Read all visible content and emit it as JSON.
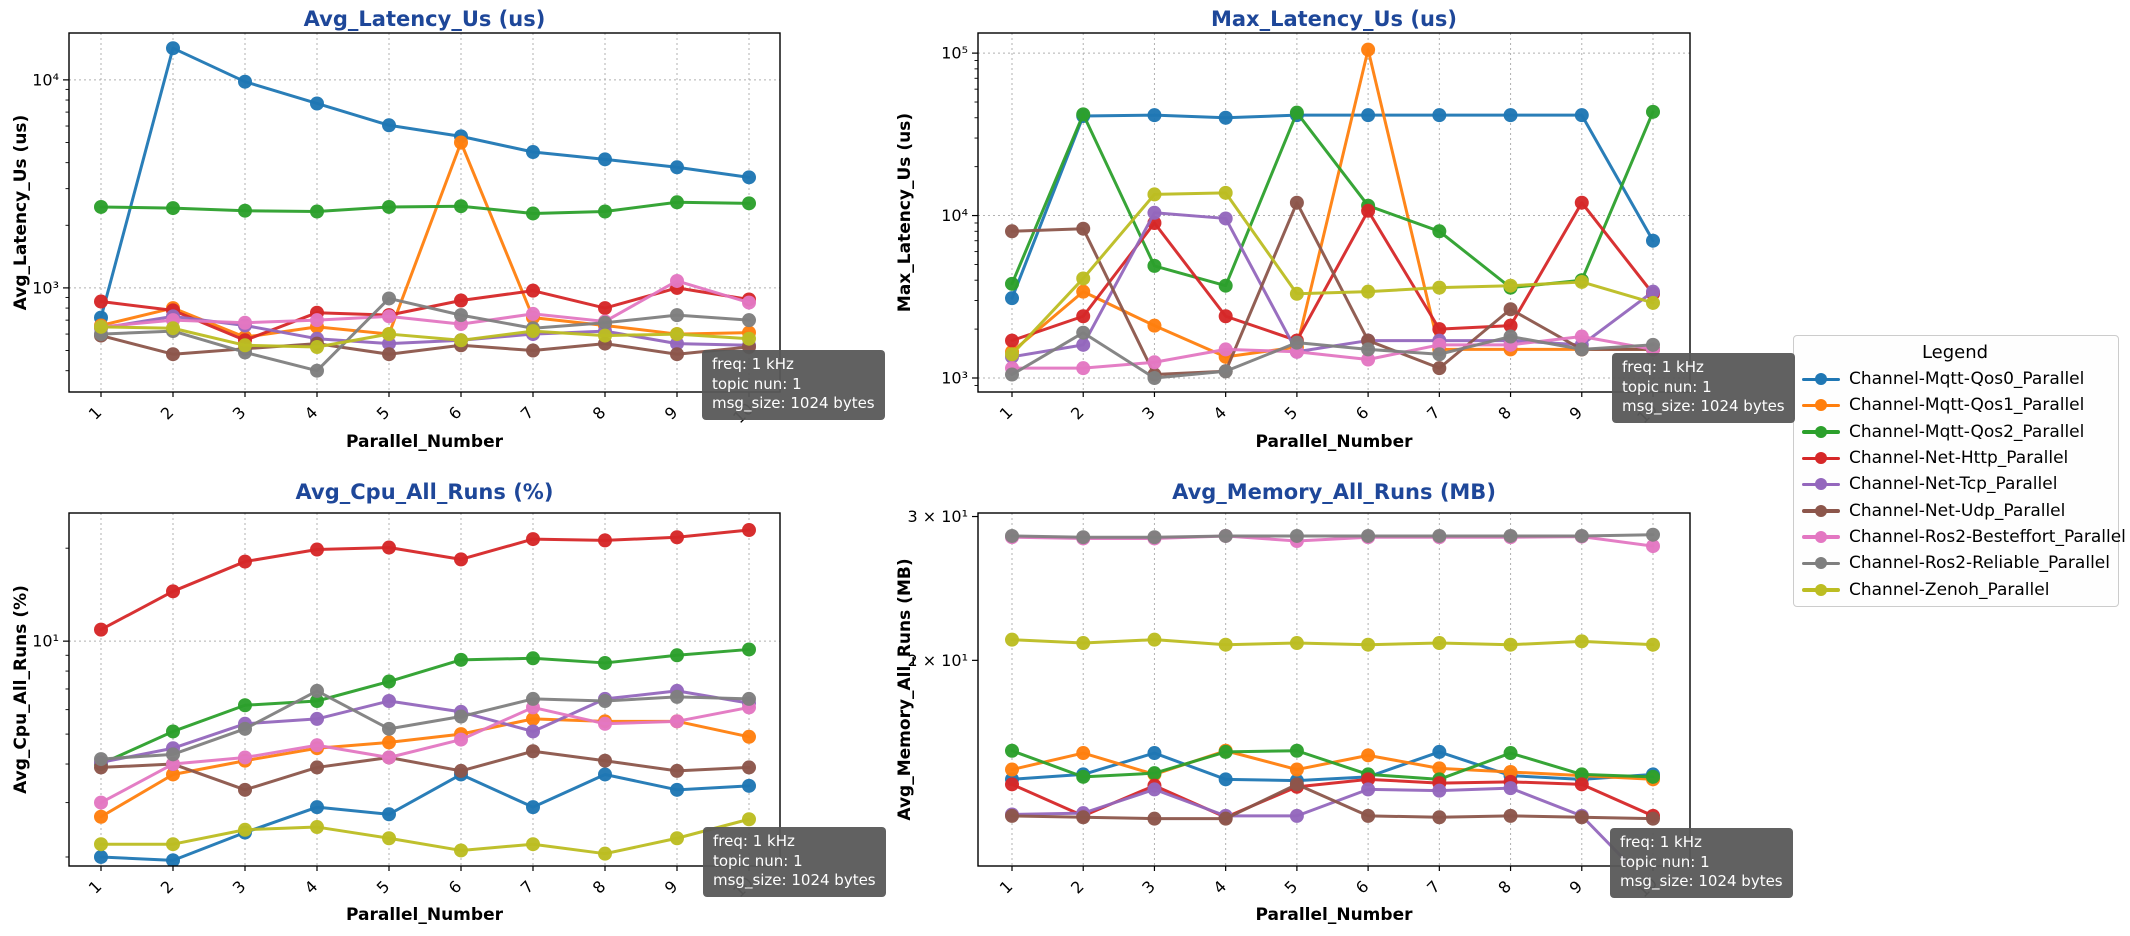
{
  "styles": {
    "background": "#ffffff",
    "title_color": "#1e4799",
    "axis_color": "#000000",
    "grid_color": "#b0b0b0",
    "annotation_bg": "#595959",
    "annotation_fg": "#ffffff",
    "legend_border": "#cccccc"
  },
  "annotation": {
    "lines": [
      "freq: 1 kHz",
      "topic nun: 1",
      "msg_size: 1024 bytes"
    ]
  },
  "legend": {
    "title": "Legend",
    "items": [
      {
        "label": "Channel-Mqtt-Qos0_Parallel",
        "color": "#1f77b4"
      },
      {
        "label": "Channel-Mqtt-Qos1_Parallel",
        "color": "#ff7f0e"
      },
      {
        "label": "Channel-Mqtt-Qos2_Parallel",
        "color": "#2ca02c"
      },
      {
        "label": "Channel-Net-Http_Parallel",
        "color": "#d62728"
      },
      {
        "label": "Channel-Net-Tcp_Parallel",
        "color": "#9467bd"
      },
      {
        "label": "Channel-Net-Udp_Parallel",
        "color": "#8c564b"
      },
      {
        "label": "Channel-Ros2-Besteffort_Parallel",
        "color": "#e377c2"
      },
      {
        "label": "Channel-Ros2-Reliable_Parallel",
        "color": "#7f7f7f"
      },
      {
        "label": "Channel-Zenoh_Parallel",
        "color": "#bcbd22"
      }
    ]
  },
  "chart_data": [
    {
      "type": "line",
      "title": "Avg_Latency_Us  (us)",
      "ylabel": "Avg_Latency_Us (us)",
      "xlabel": "Parallel_Number",
      "yscale": "log",
      "ylim": [
        316,
        16800
      ],
      "ygrid": true,
      "yticks": [
        {
          "value": 1000,
          "label": "10³"
        },
        {
          "value": 10000,
          "label": "10⁴"
        }
      ],
      "x": [
        1,
        2,
        3,
        4,
        5,
        6,
        7,
        8,
        9,
        10
      ],
      "series": [
        {
          "name": "Channel-Mqtt-Qos0_Parallel",
          "values": [
            720,
            14200,
            9800,
            7700,
            6050,
            5350,
            4500,
            4150,
            3800,
            3400
          ]
        },
        {
          "name": "Channel-Mqtt-Qos1_Parallel",
          "values": [
            660,
            800,
            580,
            650,
            600,
            5000,
            720,
            660,
            600,
            610
          ]
        },
        {
          "name": "Channel-Mqtt-Qos2_Parallel",
          "values": [
            2450,
            2420,
            2350,
            2330,
            2450,
            2470,
            2280,
            2330,
            2580,
            2550
          ]
        },
        {
          "name": "Channel-Net-Http_Parallel",
          "values": [
            860,
            780,
            560,
            760,
            740,
            870,
            970,
            800,
            1000,
            880
          ]
        },
        {
          "name": "Channel-Net-Tcp_Parallel",
          "values": [
            640,
            730,
            660,
            570,
            540,
            560,
            600,
            620,
            540,
            530
          ]
        },
        {
          "name": "Channel-Net-Udp_Parallel",
          "values": [
            590,
            480,
            510,
            540,
            480,
            530,
            500,
            540,
            480,
            520
          ]
        },
        {
          "name": "Channel-Ros2-Besteffort_Parallel",
          "values": [
            650,
            700,
            680,
            700,
            730,
            670,
            750,
            690,
            1080,
            850
          ]
        },
        {
          "name": "Channel-Ros2-Reliable_Parallel",
          "values": [
            600,
            620,
            490,
            400,
            890,
            740,
            640,
            680,
            740,
            700
          ]
        },
        {
          "name": "Channel-Zenoh_Parallel",
          "values": [
            650,
            640,
            530,
            520,
            600,
            560,
            620,
            590,
            600,
            570
          ]
        }
      ]
    },
    {
      "type": "line",
      "title": "Max_Latency_Us  (us)",
      "ylabel": "Max_Latency_Us (us)",
      "xlabel": "Parallel_Number",
      "yscale": "log",
      "ylim": [
        820,
        133000
      ],
      "ygrid": true,
      "yticks": [
        {
          "value": 1000,
          "label": "10³"
        },
        {
          "value": 10000,
          "label": "10⁴"
        },
        {
          "value": 100000,
          "label": "10⁵"
        }
      ],
      "x": [
        1,
        2,
        3,
        4,
        5,
        6,
        7,
        8,
        9,
        10
      ],
      "series": [
        {
          "name": "Channel-Mqtt-Qos0_Parallel",
          "values": [
            3100,
            41000,
            41500,
            40000,
            41500,
            41500,
            41500,
            41500,
            41500,
            7000
          ]
        },
        {
          "name": "Channel-Mqtt-Qos1_Parallel",
          "values": [
            1450,
            3400,
            2100,
            1350,
            1550,
            105000,
            1500,
            1500,
            1500,
            1500
          ]
        },
        {
          "name": "Channel-Mqtt-Qos2_Parallel",
          "values": [
            3800,
            42000,
            4900,
            3700,
            43000,
            11500,
            8000,
            3600,
            4000,
            43500
          ]
        },
        {
          "name": "Channel-Net-Http_Parallel",
          "values": [
            1700,
            2400,
            9000,
            2400,
            1700,
            10700,
            2000,
            2100,
            12000,
            3300
          ]
        },
        {
          "name": "Channel-Net-Tcp_Parallel",
          "values": [
            1350,
            1600,
            10400,
            9600,
            1450,
            1700,
            1700,
            1700,
            1600,
            3400
          ]
        },
        {
          "name": "Channel-Net-Udp_Parallel",
          "values": [
            8000,
            8300,
            1050,
            1100,
            12000,
            1700,
            1150,
            2650,
            1500,
            1500
          ]
        },
        {
          "name": "Channel-Ros2-Besteffort_Parallel",
          "values": [
            1150,
            1150,
            1250,
            1500,
            1450,
            1300,
            1600,
            1600,
            1800,
            1500
          ]
        },
        {
          "name": "Channel-Ros2-Reliable_Parallel",
          "values": [
            1050,
            1900,
            1000,
            1100,
            1650,
            1500,
            1400,
            1800,
            1500,
            1600
          ]
        },
        {
          "name": "Channel-Zenoh_Parallel",
          "values": [
            1400,
            4100,
            13500,
            13800,
            3300,
            3400,
            3600,
            3700,
            3900,
            2900
          ]
        }
      ]
    },
    {
      "type": "line",
      "title": "Avg_Cpu_All_Runs  (%)",
      "ylabel": "Avg_Cpu_All_Runs (%)",
      "xlabel": "Parallel_Number",
      "yscale": "log",
      "ylim": [
        1.87,
        26
      ],
      "ygrid": true,
      "yticks": [
        {
          "value": 10,
          "label": "10¹"
        }
      ],
      "x": [
        1,
        2,
        3,
        4,
        5,
        6,
        7,
        8,
        9,
        10
      ],
      "series": [
        {
          "name": "Channel-Mqtt-Qos0_Parallel",
          "values": [
            2.0,
            1.95,
            2.4,
            2.9,
            2.75,
            3.7,
            2.9,
            3.7,
            3.3,
            3.4
          ]
        },
        {
          "name": "Channel-Mqtt-Qos1_Parallel",
          "values": [
            2.7,
            3.7,
            4.1,
            4.5,
            4.7,
            5.0,
            5.6,
            5.5,
            5.5,
            4.9
          ]
        },
        {
          "name": "Channel-Mqtt-Qos2_Parallel",
          "values": [
            4.0,
            5.1,
            6.2,
            6.4,
            7.4,
            8.7,
            8.8,
            8.5,
            9.0,
            9.4
          ]
        },
        {
          "name": "Channel-Net-Http_Parallel",
          "values": [
            10.9,
            14.5,
            18.1,
            19.8,
            20.1,
            18.4,
            21.4,
            21.2,
            21.7,
            22.9
          ]
        },
        {
          "name": "Channel-Net-Tcp_Parallel",
          "values": [
            4.05,
            4.5,
            5.4,
            5.6,
            6.4,
            5.9,
            5.1,
            6.5,
            6.9,
            6.3
          ]
        },
        {
          "name": "Channel-Net-Udp_Parallel",
          "values": [
            3.9,
            4.0,
            3.3,
            3.9,
            4.2,
            3.8,
            4.4,
            4.1,
            3.8,
            3.9
          ]
        },
        {
          "name": "Channel-Ros2-Besteffort_Parallel",
          "values": [
            3.0,
            4.0,
            4.2,
            4.6,
            4.2,
            4.8,
            6.1,
            5.4,
            5.5,
            6.1
          ]
        },
        {
          "name": "Channel-Ros2-Reliable_Parallel",
          "values": [
            4.15,
            4.3,
            5.2,
            6.9,
            5.2,
            5.7,
            6.5,
            6.4,
            6.6,
            6.5
          ]
        },
        {
          "name": "Channel-Zenoh_Parallel",
          "values": [
            2.2,
            2.2,
            2.45,
            2.5,
            2.3,
            2.1,
            2.2,
            2.05,
            2.3,
            2.65
          ]
        }
      ]
    },
    {
      "type": "line",
      "title": "Avg_Memory_All_Runs  (MB)",
      "ylabel": "Avg_Memory_All_Runs (MB)",
      "xlabel": "Parallel_Number",
      "yscale": "log",
      "ylim": [
        11.2,
        30.3
      ],
      "ygrid": false,
      "yticks": [
        {
          "value": 20,
          "label": "2 × 10¹"
        },
        {
          "value": 30,
          "label": "3 × 10¹"
        }
      ],
      "x": [
        1,
        2,
        3,
        4,
        5,
        6,
        7,
        8,
        9,
        10
      ],
      "series": [
        {
          "name": "Channel-Mqtt-Qos0_Parallel",
          "values": [
            14.3,
            14.5,
            15.4,
            14.3,
            14.25,
            14.4,
            15.45,
            14.45,
            14.3,
            14.5
          ]
        },
        {
          "name": "Channel-Mqtt-Qos1_Parallel",
          "values": [
            14.7,
            15.4,
            14.5,
            15.5,
            14.7,
            15.3,
            14.75,
            14.6,
            14.45,
            14.3
          ]
        },
        {
          "name": "Channel-Mqtt-Qos2_Parallel",
          "values": [
            15.5,
            14.4,
            14.55,
            15.45,
            15.5,
            14.5,
            14.3,
            15.4,
            14.5,
            14.4
          ]
        },
        {
          "name": "Channel-Net-Http_Parallel",
          "values": [
            14.1,
            12.9,
            14.05,
            12.85,
            14.0,
            14.3,
            14.15,
            14.2,
            14.1,
            12.9
          ]
        },
        {
          "name": "Channel-Net-Tcp_Parallel",
          "values": [
            12.95,
            13.0,
            13.9,
            12.9,
            12.9,
            13.9,
            13.85,
            13.95,
            12.9,
            10.5
          ]
        },
        {
          "name": "Channel-Net-Udp_Parallel",
          "values": [
            12.9,
            12.85,
            12.8,
            12.8,
            14.1,
            12.9,
            12.85,
            12.9,
            12.85,
            12.8
          ]
        },
        {
          "name": "Channel-Ros2-Besteffort_Parallel",
          "values": [
            28.3,
            28.2,
            28.2,
            28.4,
            28.0,
            28.3,
            28.3,
            28.3,
            28.35,
            27.6
          ]
        },
        {
          "name": "Channel-Ros2-Reliable_Parallel",
          "values": [
            28.4,
            28.3,
            28.3,
            28.4,
            28.4,
            28.4,
            28.4,
            28.4,
            28.4,
            28.5
          ]
        },
        {
          "name": "Channel-Zenoh_Parallel",
          "values": [
            21.2,
            21.0,
            21.2,
            20.9,
            21.0,
            20.9,
            21.0,
            20.9,
            21.1,
            20.9
          ]
        }
      ]
    }
  ]
}
